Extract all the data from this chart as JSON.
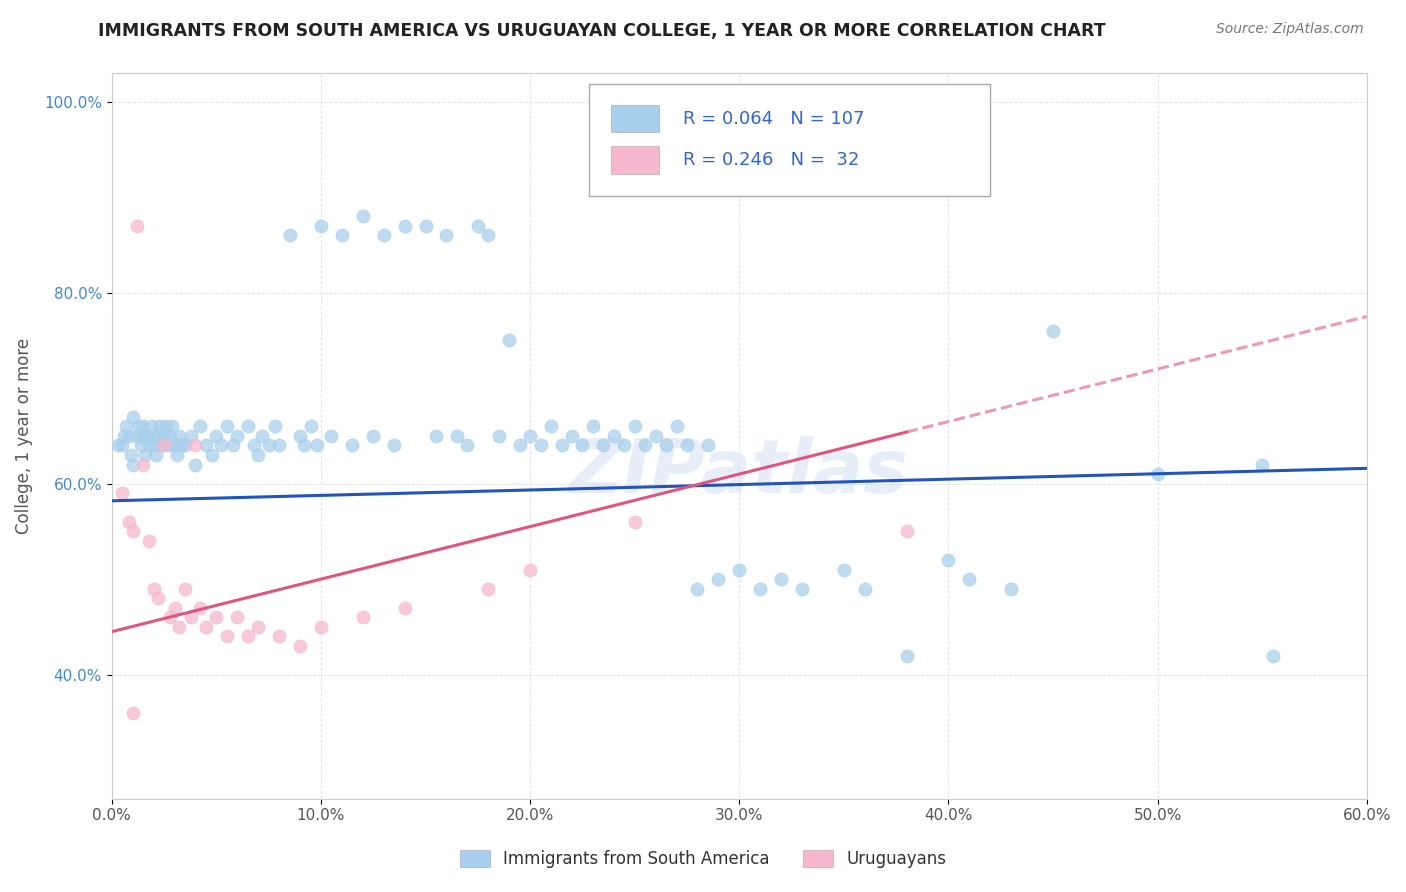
{
  "title": "IMMIGRANTS FROM SOUTH AMERICA VS URUGUAYAN COLLEGE, 1 YEAR OR MORE CORRELATION CHART",
  "source_text": "Source: ZipAtlas.com",
  "ylabel": "College, 1 year or more",
  "xlim": [
    0.0,
    0.6
  ],
  "ylim": [
    0.27,
    1.03
  ],
  "xtick_labels": [
    "0.0%",
    "",
    "",
    "",
    "",
    "",
    "",
    "",
    "",
    "",
    "10.0%",
    "",
    "",
    "",
    "",
    "",
    "",
    "",
    "",
    "",
    "20.0%",
    "",
    "",
    "",
    "",
    "",
    "",
    "",
    "",
    "",
    "30.0%",
    "",
    "",
    "",
    "",
    "",
    "",
    "",
    "",
    "",
    "40.0%",
    "",
    "",
    "",
    "",
    "",
    "",
    "",
    "",
    "",
    "50.0%",
    "",
    "",
    "",
    "",
    "",
    "",
    "",
    "",
    "",
    "60.0%"
  ],
  "xtick_vals": [
    0.0,
    0.01,
    0.02,
    0.03,
    0.04,
    0.05,
    0.06,
    0.07,
    0.08,
    0.09,
    0.1,
    0.11,
    0.12,
    0.13,
    0.14,
    0.15,
    0.16,
    0.17,
    0.18,
    0.19,
    0.2,
    0.21,
    0.22,
    0.23,
    0.24,
    0.25,
    0.26,
    0.27,
    0.28,
    0.29,
    0.3,
    0.31,
    0.32,
    0.33,
    0.34,
    0.35,
    0.36,
    0.37,
    0.38,
    0.39,
    0.4,
    0.41,
    0.42,
    0.43,
    0.44,
    0.45,
    0.46,
    0.47,
    0.48,
    0.49,
    0.5,
    0.51,
    0.52,
    0.53,
    0.54,
    0.55,
    0.56,
    0.57,
    0.58,
    0.59,
    0.6
  ],
  "ytick_labels": [
    "40.0%",
    "60.0%",
    "80.0%",
    "100.0%"
  ],
  "ytick_vals": [
    0.4,
    0.6,
    0.8,
    1.0
  ],
  "blue_R": 0.064,
  "blue_N": 107,
  "pink_R": 0.246,
  "pink_N": 32,
  "blue_color": "#A8CFEC",
  "pink_color": "#F5B8CE",
  "blue_line_color": "#2255BB",
  "pink_line_color": "#E05580",
  "legend_blue_label": "Immigrants from South America",
  "legend_pink_label": "Uruguayans",
  "background_color": "#FFFFFF",
  "grid_color": "#DDDDDD"
}
